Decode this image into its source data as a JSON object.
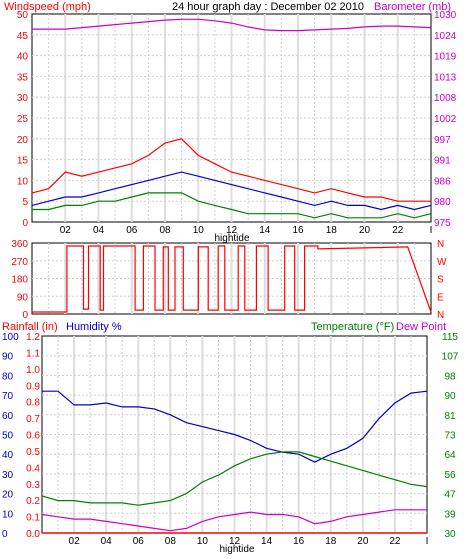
{
  "chart_data": [
    {
      "type": "line",
      "title": "24 hour graph day : December 02 2010",
      "left_axis_label": "Windspeed (mph)",
      "right_axis_label": "Barometer (mb)",
      "xlabel": "hightide",
      "x_ticks": [
        "02",
        "04",
        "06",
        "08",
        "10",
        "12",
        "14",
        "16",
        "18",
        "20",
        "22",
        "I"
      ],
      "left_ticks": [
        "0",
        "5",
        "10",
        "15",
        "20",
        "25",
        "30",
        "35",
        "40",
        "45",
        "50"
      ],
      "right_ticks": [
        "975",
        "980",
        "986",
        "991",
        "997",
        "1002",
        "1008",
        "1013",
        "1019",
        "1024",
        "1030"
      ],
      "ylim_left": [
        0,
        50
      ],
      "ylim_right": [
        975,
        1030
      ],
      "x_hours": [
        0,
        1,
        2,
        3,
        4,
        5,
        6,
        7,
        8,
        9,
        10,
        11,
        12,
        13,
        14,
        15,
        16,
        17,
        18,
        19,
        20,
        21,
        22,
        23,
        24
      ],
      "series": [
        {
          "role": "gust",
          "color": "#ff0000",
          "axis": "left",
          "values": [
            7,
            8,
            12,
            11,
            12,
            13,
            14,
            16,
            19,
            20,
            16,
            14,
            12,
            11,
            10,
            9,
            8,
            7,
            8,
            7,
            6,
            6,
            5,
            5,
            5
          ]
        },
        {
          "role": "average",
          "color": "#0000cc",
          "axis": "left",
          "values": [
            4,
            5,
            6,
            6,
            7,
            8,
            9,
            10,
            11,
            12,
            11,
            10,
            9,
            8,
            7,
            6,
            5,
            4,
            5,
            4,
            4,
            3,
            4,
            3,
            4
          ]
        },
        {
          "role": "low",
          "color": "#008000",
          "axis": "left",
          "values": [
            3,
            3,
            4,
            4,
            5,
            5,
            6,
            7,
            7,
            7,
            5,
            4,
            3,
            2,
            2,
            2,
            2,
            1,
            2,
            1,
            1,
            1,
            2,
            1,
            2
          ]
        },
        {
          "role": "barometer",
          "color": "#cc00cc",
          "axis": "right",
          "values": [
            1026,
            1026,
            1026,
            1026.4,
            1026.8,
            1027.2,
            1027.6,
            1028,
            1028.4,
            1028.6,
            1028.6,
            1028.2,
            1027.6,
            1026.6,
            1025.8,
            1025.6,
            1025.6,
            1025.8,
            1026,
            1026.2,
            1026.6,
            1026.8,
            1026.8,
            1026.6,
            1026.4
          ]
        }
      ]
    },
    {
      "type": "line",
      "left_ticks": [
        "0",
        "90",
        "180",
        "270",
        "360"
      ],
      "right_ticks": [
        "N",
        "E",
        "S",
        "W",
        "N"
      ],
      "ylim": [
        0,
        360
      ],
      "color": "#ff0000",
      "segments_x": [
        0,
        2.1,
        2.1,
        3.1,
        3.1,
        3.4,
        3.4,
        4.1,
        4.1,
        4.3,
        4.3,
        6.2,
        6.2,
        6.7,
        6.7,
        7.4,
        7.4,
        7.9,
        7.9,
        8.2,
        8.2,
        8.6,
        8.6,
        9.1,
        9.1,
        10.0,
        10.0,
        10.6,
        10.6,
        11.2,
        11.2,
        11.6,
        11.6,
        12.4,
        12.4,
        12.8,
        12.8,
        13.5,
        13.5,
        14.2,
        14.2,
        15.2,
        15.2,
        15.8,
        15.8,
        16.4,
        16.4,
        17.2,
        17.2,
        22.6,
        22.6,
        24
      ],
      "segments_y": [
        10,
        10,
        345,
        345,
        25,
        25,
        345,
        345,
        20,
        20,
        345,
        345,
        20,
        20,
        345,
        345,
        20,
        20,
        340,
        340,
        20,
        20,
        340,
        340,
        20,
        20,
        340,
        340,
        20,
        20,
        345,
        345,
        20,
        20,
        345,
        345,
        20,
        20,
        345,
        345,
        20,
        20,
        345,
        345,
        20,
        20,
        345,
        345,
        330,
        340,
        340,
        10
      ]
    },
    {
      "type": "line",
      "rain_label": "Rainfall (in)",
      "humidity_label": "Humidity %",
      "temperature_label": "Temperature (°F)",
      "dewpoint_label": "Dew Point",
      "xlabel": "hightide",
      "x_ticks": [
        "02",
        "04",
        "06",
        "08",
        "10",
        "12",
        "14",
        "16",
        "18",
        "20",
        "22",
        "I"
      ],
      "humidity_ticks": [
        "0",
        "10",
        "20",
        "30",
        "40",
        "50",
        "60",
        "70",
        "80",
        "90",
        "100"
      ],
      "rain_ticks": [
        "0.0",
        "0.1",
        "0.2",
        "0.3",
        "0.4",
        "0.5",
        "0.6",
        "0.7",
        "0.8",
        "0.9",
        "1.0",
        "1.1",
        "1.2"
      ],
      "temp_ticks": [
        "30",
        "39",
        "47",
        "56",
        "64",
        "73",
        "81",
        "90",
        "98",
        "107",
        "115"
      ],
      "ylim_humidity": [
        0,
        100
      ],
      "ylim_temp": [
        30,
        115
      ],
      "x_hours": [
        0,
        1,
        2,
        3,
        4,
        5,
        6,
        7,
        8,
        9,
        10,
        11,
        12,
        13,
        14,
        15,
        16,
        17,
        18,
        19,
        20,
        21,
        22,
        23,
        24
      ],
      "series": [
        {
          "role": "humidity",
          "color": "#0000cc",
          "axis": "humidity",
          "values": [
            72,
            72,
            65,
            65,
            66,
            64,
            64,
            63,
            60,
            56,
            54,
            52,
            50,
            47,
            43,
            41,
            40,
            36,
            40,
            43,
            48,
            58,
            66,
            71,
            72
          ]
        },
        {
          "role": "temperature",
          "color": "#008000",
          "axis": "temp",
          "values": [
            46,
            44,
            44,
            43,
            43,
            43,
            42,
            43,
            44,
            47,
            52,
            55,
            59,
            62,
            64,
            65,
            65,
            63,
            61,
            59,
            57,
            55,
            53,
            51,
            50
          ]
        },
        {
          "role": "dewpoint",
          "color": "#cc00cc",
          "axis": "temp",
          "values": [
            38,
            37,
            36,
            36,
            35,
            34,
            33,
            32,
            31,
            32,
            35,
            37,
            38,
            39,
            38,
            38,
            37,
            34,
            35,
            37,
            38,
            39,
            40,
            40,
            40
          ]
        },
        {
          "role": "rainfall",
          "color": "#ff0000",
          "axis": "humidity",
          "values": [
            0,
            0,
            0,
            0,
            0,
            0,
            0,
            0,
            0,
            0,
            0,
            0,
            0,
            0,
            0,
            0,
            0,
            0,
            0,
            0,
            0,
            0,
            0,
            0,
            0
          ]
        }
      ]
    }
  ]
}
